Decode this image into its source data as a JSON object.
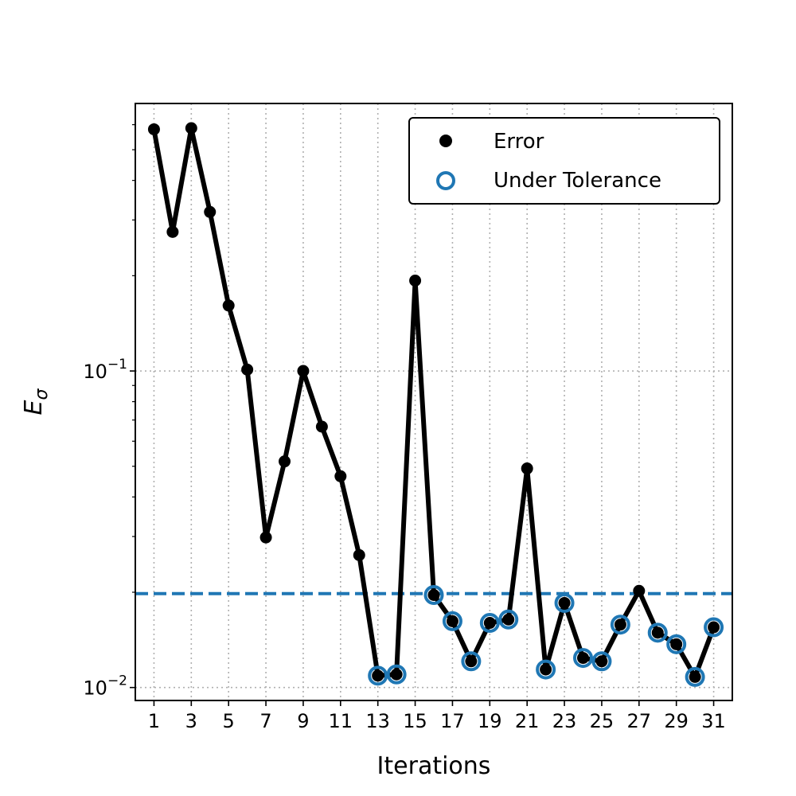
{
  "chart_data": {
    "type": "line",
    "xlabel": "Iterations",
    "ylabel": "E",
    "ylabel_subscript": "σ",
    "yscale": "log",
    "xlim": [
      0,
      32
    ],
    "ylim": [
      0.0091,
      0.7
    ],
    "xticks": [
      1,
      3,
      5,
      7,
      9,
      11,
      13,
      15,
      17,
      19,
      21,
      23,
      25,
      27,
      29,
      31
    ],
    "yticks": [
      {
        "value": 0.01,
        "base": "10",
        "exp": "−2"
      },
      {
        "value": 0.1,
        "base": "10",
        "exp": "−1"
      }
    ],
    "grid": true,
    "legend_position": "top-right",
    "legend": [
      {
        "label": "Error",
        "marker": "filled-circle",
        "color": "#000000"
      },
      {
        "label": "Under Tolerance",
        "marker": "open-circle",
        "color": "#1f77b4"
      }
    ],
    "tolerance": 0.0198,
    "tolerance_color": "#1f77b4",
    "line_color": "#000000",
    "x": [
      1,
      2,
      3,
      4,
      5,
      6,
      7,
      8,
      9,
      10,
      11,
      12,
      13,
      14,
      15,
      16,
      17,
      18,
      19,
      20,
      21,
      22,
      23,
      24,
      25,
      26,
      27,
      28,
      29,
      30,
      31
    ],
    "values": [
      0.58,
      0.275,
      0.585,
      0.318,
      0.161,
      0.101,
      0.0298,
      0.0518,
      0.1,
      0.0667,
      0.0465,
      0.0262,
      0.0109,
      0.011,
      0.193,
      0.0196,
      0.0162,
      0.0121,
      0.016,
      0.0164,
      0.0492,
      0.0114,
      0.0185,
      0.0124,
      0.0121,
      0.0158,
      0.0202,
      0.0149,
      0.0137,
      0.0108,
      0.0155
    ],
    "x_fixed": [
      1,
      2,
      3,
      4,
      5,
      6,
      7,
      8,
      9,
      10,
      11,
      12,
      13,
      14,
      15,
      16,
      17,
      18,
      19,
      20,
      21,
      22,
      23,
      24,
      25,
      26,
      27,
      28,
      29,
      30,
      31
    ]
  }
}
